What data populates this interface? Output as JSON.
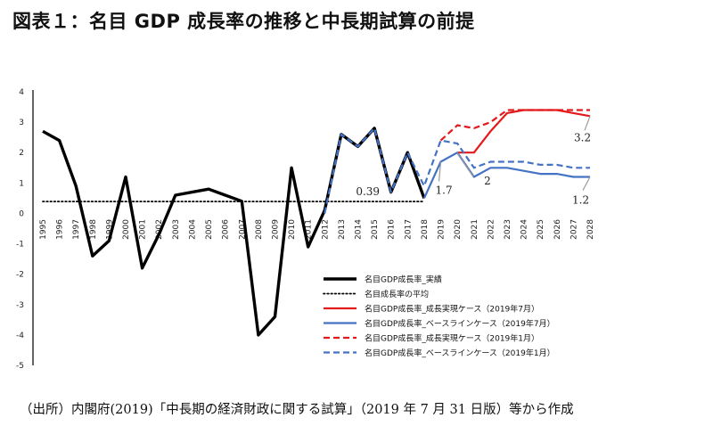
{
  "title": "図表１：名目 GDP 成長率の推移と中長期試算の前提",
  "source": "（出所）内閣府(2019)「中長期の経済財政に関する試算」（2019 年 7 月 31 日版）等から作成",
  "chart_data": {
    "type": "line",
    "title": "",
    "xlabel": "",
    "ylabel": "",
    "x": [
      "1995",
      "1996",
      "1997",
      "1998",
      "1999",
      "2000",
      "2001",
      "2002",
      "2003",
      "2004",
      "2005",
      "2006",
      "2007",
      "2008",
      "2009",
      "2010",
      "2011",
      "2012",
      "2013",
      "2014",
      "2015",
      "2016",
      "2017",
      "2018",
      "2019",
      "2020",
      "2021",
      "2022",
      "2023",
      "2024",
      "2025",
      "2026",
      "2027",
      "2028"
    ],
    "ylim": [
      -5,
      4
    ],
    "yticks": [
      "4",
      "3",
      "2",
      "1",
      "0",
      "-1",
      "-2",
      "-3",
      "-4",
      "-5"
    ],
    "legend_position": "bottom-right",
    "series": [
      {
        "name": "名目GDP成長率_実績",
        "color": "#000000",
        "dash": "solid",
        "width": 3.4,
        "values": [
          2.7,
          2.4,
          0.9,
          -1.4,
          -0.9,
          1.2,
          -1.8,
          -0.7,
          0.6,
          0.7,
          0.8,
          0.6,
          0.4,
          -4.0,
          -3.4,
          1.5,
          -1.1,
          0.1,
          2.6,
          2.2,
          2.8,
          0.7,
          2.0,
          0.5,
          null,
          null,
          null,
          null,
          null,
          null,
          null,
          null,
          null,
          null
        ]
      },
      {
        "name": "名目成長率の平均",
        "color": "#000000",
        "dash": "dotted",
        "width": 1.8,
        "values": [
          0.39,
          0.39,
          0.39,
          0.39,
          0.39,
          0.39,
          0.39,
          0.39,
          0.39,
          0.39,
          0.39,
          0.39,
          0.39,
          0.39,
          0.39,
          0.39,
          0.39,
          0.39,
          0.39,
          0.39,
          0.39,
          0.39,
          0.39,
          0.39,
          null,
          null,
          null,
          null,
          null,
          null,
          null,
          null,
          null,
          null
        ]
      },
      {
        "name": "名目GDP成長率_成長実現ケース（2019年7月）",
        "color": "#e31a1c",
        "dash": "solid",
        "width": 2.2,
        "values": [
          null,
          null,
          null,
          null,
          null,
          null,
          null,
          null,
          null,
          null,
          null,
          null,
          null,
          null,
          null,
          null,
          null,
          null,
          null,
          null,
          null,
          null,
          null,
          null,
          null,
          2.0,
          2.0,
          2.7,
          3.3,
          3.4,
          3.4,
          3.4,
          3.3,
          3.2
        ]
      },
      {
        "name": "名目GDP成長率_ベースラインケース（2019年7月）",
        "color": "#4472c4",
        "dash": "solid",
        "width": 2.2,
        "values": [
          null,
          null,
          null,
          null,
          null,
          null,
          null,
          null,
          null,
          null,
          null,
          null,
          null,
          null,
          null,
          null,
          null,
          null,
          null,
          null,
          null,
          null,
          null,
          0.5,
          1.7,
          2.0,
          1.2,
          1.5,
          1.5,
          1.4,
          1.3,
          1.3,
          1.2,
          1.2
        ]
      },
      {
        "name": "名目GDP成長率_成長実現ケース（2019年1月）",
        "color": "#e31a1c",
        "dash": "dashed",
        "width": 2.2,
        "values": [
          null,
          null,
          null,
          null,
          null,
          null,
          null,
          null,
          null,
          null,
          null,
          null,
          null,
          null,
          null,
          null,
          null,
          null,
          null,
          null,
          null,
          null,
          null,
          null,
          2.4,
          2.9,
          2.8,
          3.0,
          3.4,
          3.4,
          3.4,
          3.4,
          3.4,
          3.4
        ]
      },
      {
        "name": "名目GDP成長率_ベースラインケース（2019年1月）",
        "color": "#4472c4",
        "dash": "dashed",
        "width": 2.2,
        "values": [
          null,
          null,
          null,
          null,
          null,
          null,
          null,
          null,
          null,
          null,
          null,
          null,
          null,
          null,
          null,
          null,
          null,
          0.0,
          2.6,
          2.2,
          2.8,
          0.7,
          2.0,
          0.9,
          2.4,
          2.3,
          1.5,
          1.7,
          1.7,
          1.7,
          1.6,
          1.6,
          1.5,
          1.5
        ]
      }
    ],
    "annotations": [
      {
        "text": "0.39",
        "year": "2017",
        "value": 0.39
      },
      {
        "text": "1.7",
        "year": "2019",
        "value": 1.7
      },
      {
        "text": "2",
        "year": "2020",
        "value": 2.0
      },
      {
        "text": "1.2",
        "year": "2028",
        "value": 1.2
      },
      {
        "text": "3.2",
        "year": "2028",
        "value": 3.2
      }
    ]
  }
}
